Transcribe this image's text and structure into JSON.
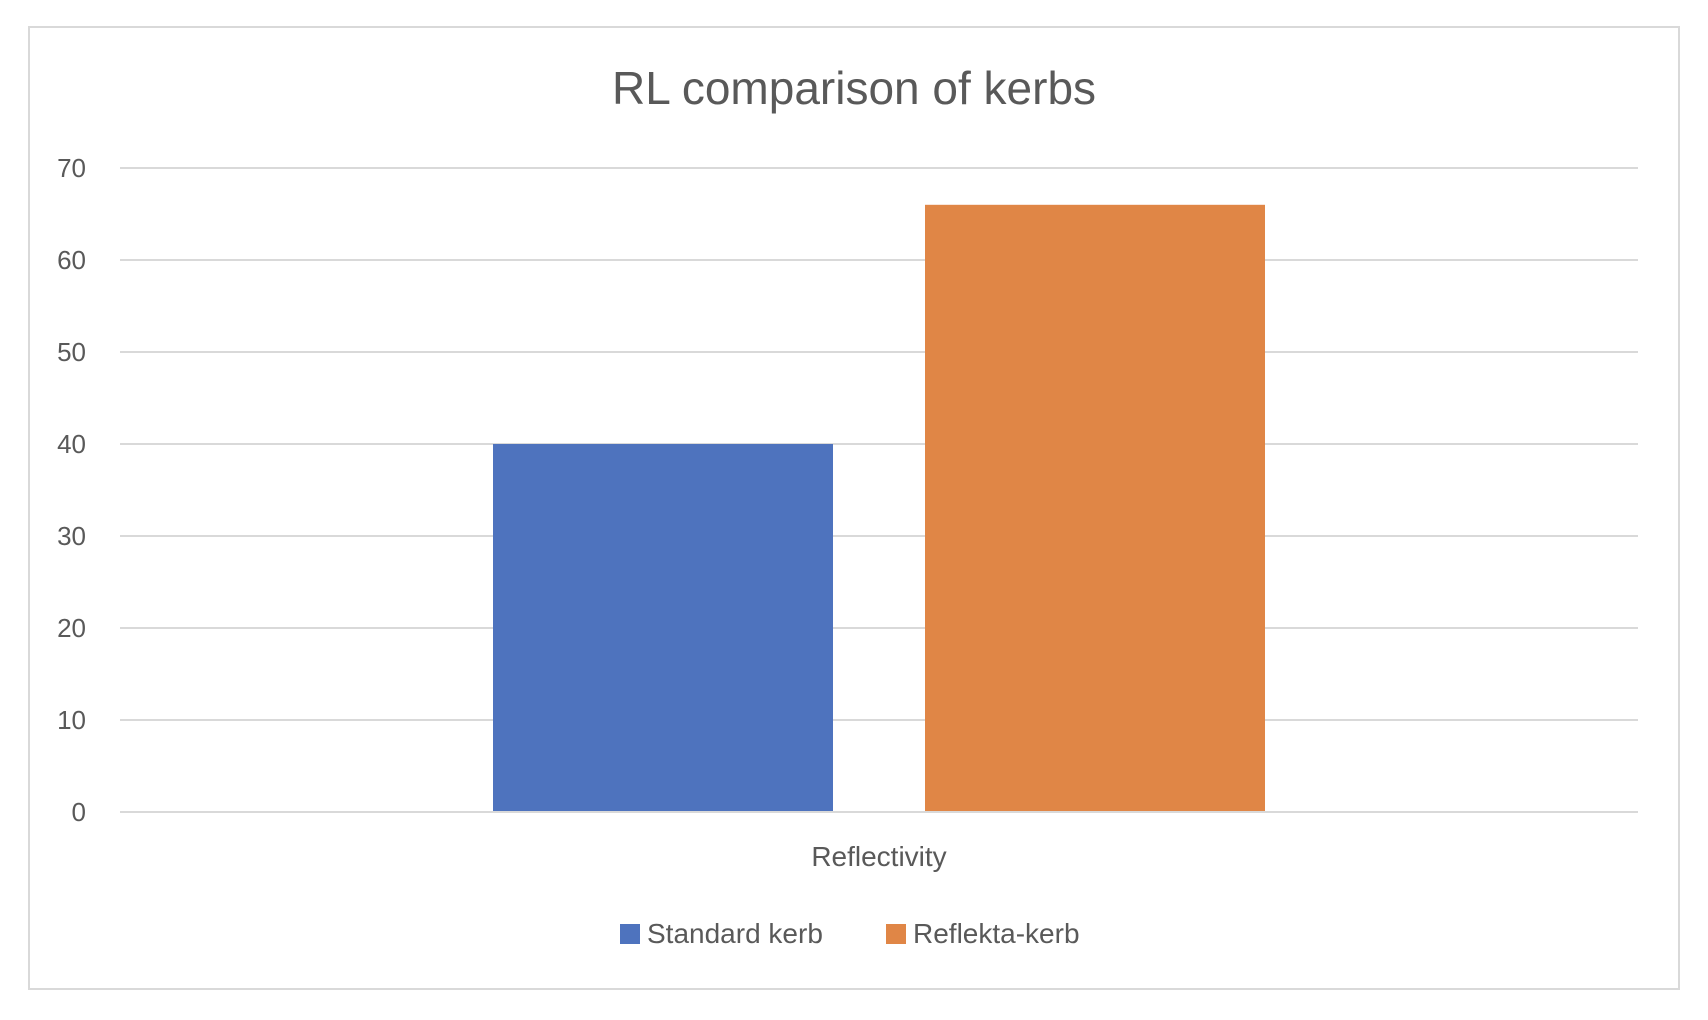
{
  "chart_data": {
    "type": "bar",
    "title": "RL comparison of kerbs",
    "xlabel": "",
    "ylabel": "",
    "categories": [
      "Reflectivity"
    ],
    "series": [
      {
        "name": "Standard kerb",
        "values": [
          40
        ],
        "color": "#4e73be"
      },
      {
        "name": "Reflekta-kerb",
        "values": [
          66
        ],
        "color": "#e08646"
      }
    ],
    "ylim": [
      0,
      70
    ],
    "yticks": [
      0,
      10,
      20,
      30,
      40,
      50,
      60,
      70
    ],
    "grid": true,
    "legend_position": "bottom"
  }
}
